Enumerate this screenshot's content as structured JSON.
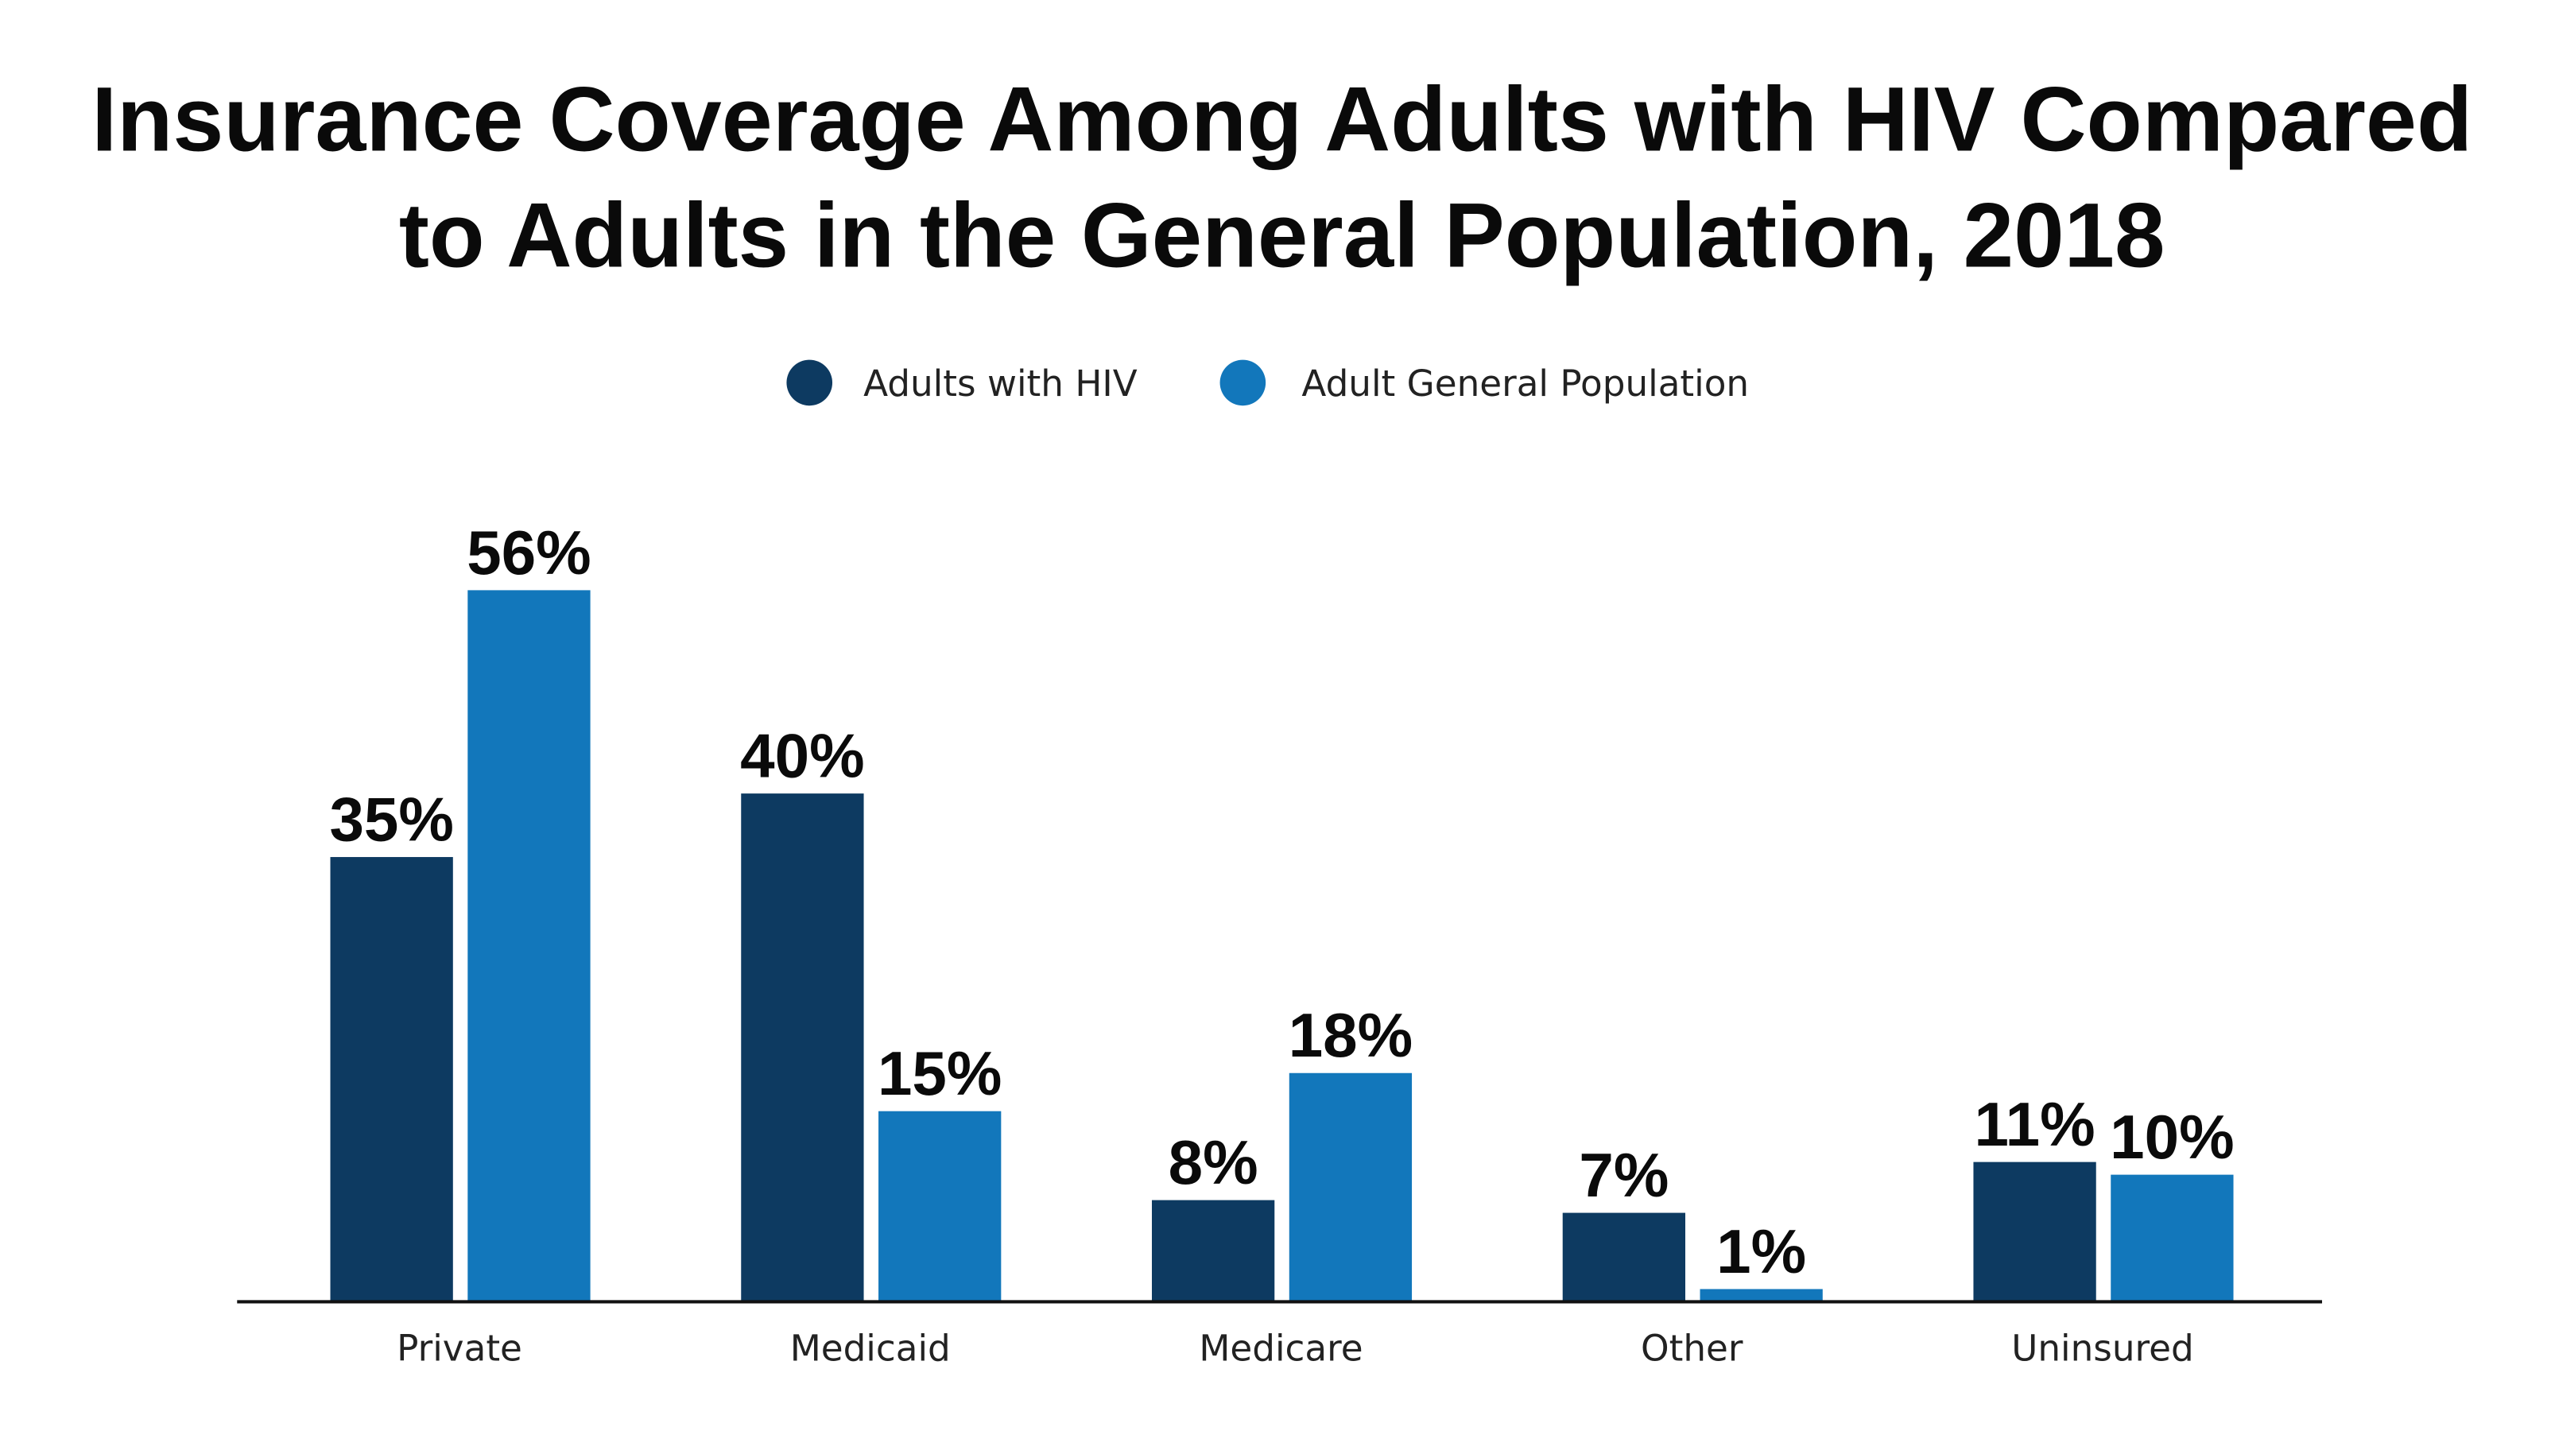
{
  "chart_data": {
    "type": "bar",
    "title": "Insurance Coverage Among Adults with HIV Compared to Adults in the General Population, 2018",
    "title_lines": [
      "Insurance Coverage Among Adults with HIV Compared",
      "to Adults in the General Population, 2018"
    ],
    "categories": [
      "Private",
      "Medicaid",
      "Medicare",
      "Other",
      "Uninsured"
    ],
    "series": [
      {
        "name": "Adults with HIV",
        "color": "#0d3a61",
        "values": [
          35,
          40,
          8,
          7,
          11
        ]
      },
      {
        "name": "Adult General Population",
        "color": "#1277bb",
        "values": [
          56,
          15,
          18,
          1,
          10
        ]
      }
    ],
    "value_suffix": "%",
    "ylim": [
      0,
      60
    ],
    "grid": false,
    "legend": "top-center",
    "xlabel": "",
    "ylabel": ""
  }
}
